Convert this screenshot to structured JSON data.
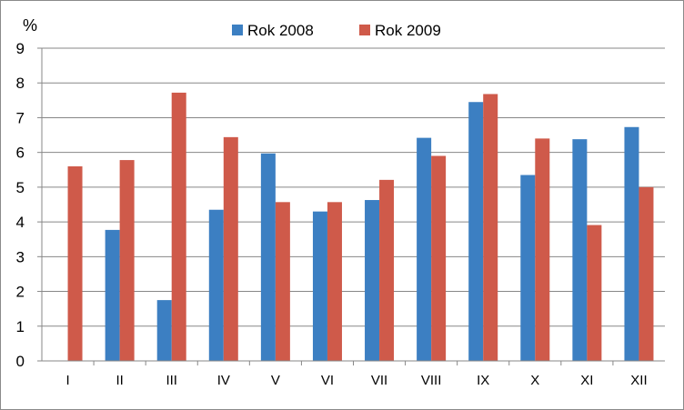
{
  "chart_data": {
    "type": "bar",
    "ylabel": "%",
    "ylim": [
      0,
      9
    ],
    "yticks": [
      "0",
      "1",
      "2",
      "3",
      "4",
      "5",
      "6",
      "7",
      "8",
      "9"
    ],
    "grid": true,
    "legend_position": "top",
    "categories": [
      "I",
      "II",
      "III",
      "IV",
      "V",
      "VI",
      "VII",
      "VIII",
      "IX",
      "X",
      "XI",
      "XII"
    ],
    "series": [
      {
        "name": "Rok 2008",
        "color": "#3c7fc2",
        "values": [
          null,
          3.77,
          1.75,
          4.35,
          5.97,
          4.3,
          4.63,
          6.42,
          7.45,
          5.35,
          6.38,
          6.73
        ]
      },
      {
        "name": "Rok 2009",
        "color": "#cf5a4a",
        "values": [
          5.6,
          5.78,
          7.72,
          6.44,
          4.57,
          4.57,
          5.21,
          5.9,
          7.68,
          6.4,
          3.91,
          5.0
        ]
      }
    ]
  }
}
